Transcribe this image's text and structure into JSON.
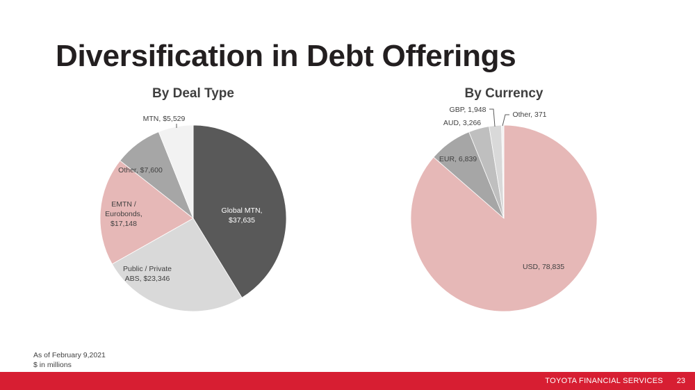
{
  "slide": {
    "title": "Diversification in Debt Offerings",
    "footnote_date": "As of February 9,2021",
    "footnote_units": "$ in millions",
    "footer_brand": "TOYOTA FINANCIAL SERVICES",
    "page_number": "23",
    "accent_color": "#d71e32"
  },
  "chart_data": [
    {
      "type": "pie",
      "title": "By Deal Type",
      "slices": [
        {
          "label": "Global MTN,",
          "value_text": "$37,635",
          "value": 37635,
          "color": "#595959"
        },
        {
          "label": "Public / Private",
          "value_text": "ABS,  $23,346",
          "value": 23346,
          "color": "#d9d9d9"
        },
        {
          "label": "EMTN /",
          "label2": "Eurobonds,",
          "value_text": "$17,148",
          "value": 17148,
          "color": "#e6b8b7"
        },
        {
          "label": "Other,  $7,600",
          "value": 7600,
          "color": "#a6a6a6"
        },
        {
          "label": "MTN,  $5,529",
          "value": 5529,
          "color": "#f2f2f2"
        }
      ]
    },
    {
      "type": "pie",
      "title": "By Currency",
      "slices": [
        {
          "label": "USD,  78,835",
          "value": 78835,
          "color": "#e6b8b7"
        },
        {
          "label": "EUR,  6,839",
          "value": 6839,
          "color": "#a6a6a6"
        },
        {
          "label": "AUD,  3,266",
          "value": 3266,
          "color": "#bfbfbf"
        },
        {
          "label": "GBP,  1,948",
          "value": 1948,
          "color": "#d9d9d9"
        },
        {
          "label": "Other,  371",
          "value": 371,
          "color": "#f2f2f2"
        }
      ]
    }
  ]
}
